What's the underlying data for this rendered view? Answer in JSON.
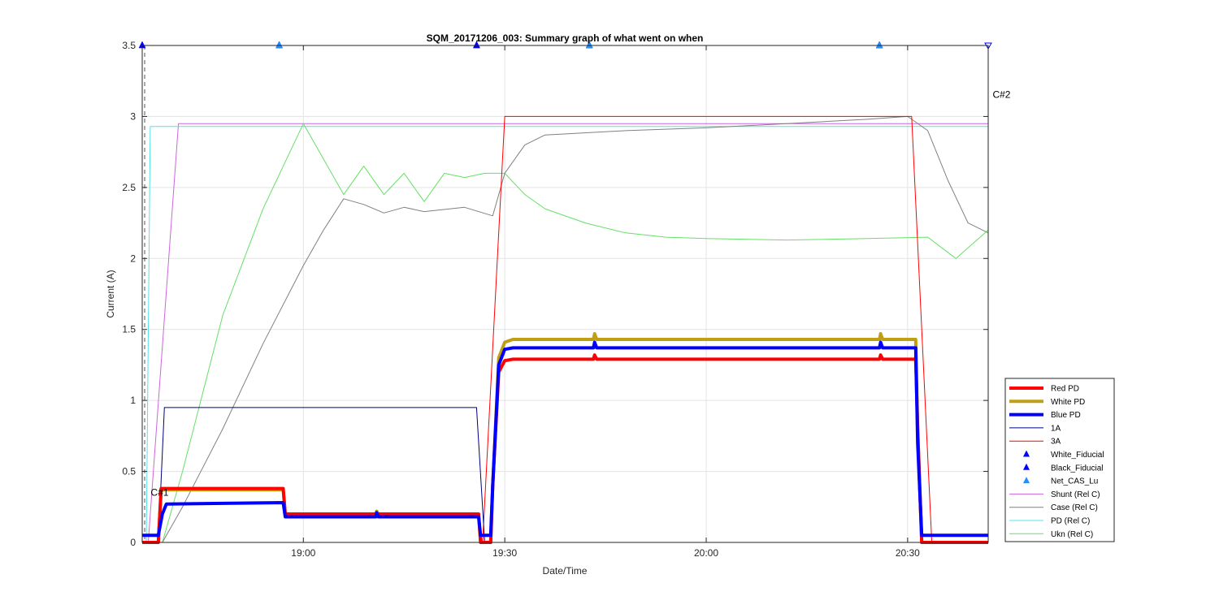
{
  "chart_data": {
    "type": "line",
    "title": "SQM_20171206_003: Summary graph of what went on when",
    "xlabel": "Date/Time",
    "ylabel": "Current (A)",
    "xlim": [
      18.6,
      20.7
    ],
    "ylim": [
      0,
      3.5
    ],
    "x_ticks": [
      {
        "value": 19.0,
        "label": "19:00"
      },
      {
        "value": 19.5,
        "label": "19:30"
      },
      {
        "value": 20.0,
        "label": "20:00"
      },
      {
        "value": 20.5,
        "label": "20:30"
      }
    ],
    "y_ticks": [
      {
        "value": 0,
        "label": "0"
      },
      {
        "value": 0.5,
        "label": "0.5"
      },
      {
        "value": 1,
        "label": "1"
      },
      {
        "value": 1.5,
        "label": "1.5"
      },
      {
        "value": 2,
        "label": "2"
      },
      {
        "value": 2.5,
        "label": "2.5"
      },
      {
        "value": 3,
        "label": "3"
      },
      {
        "value": 3.5,
        "label": "3.5"
      }
    ],
    "grid": true,
    "legend_position": "bottom-right outside",
    "annotations": [
      {
        "text": "C#1",
        "x": 18.615,
        "y": 0.33
      },
      {
        "text": "C#2",
        "x": 20.705,
        "y": 3.13
      }
    ],
    "series": [
      {
        "name": "Red PD",
        "color": "#ff0000",
        "width": 4,
        "x": [
          18.6,
          18.64,
          18.647,
          18.95,
          18.955,
          19.435,
          19.44,
          19.465,
          19.47,
          19.485,
          19.5,
          19.52,
          19.72,
          19.723,
          19.728,
          20.43,
          20.433,
          20.438,
          20.52,
          20.525,
          20.535,
          20.7
        ],
        "y": [
          0.0,
          0.0,
          0.38,
          0.38,
          0.2,
          0.2,
          0.0,
          0.0,
          0.4,
          1.2,
          1.28,
          1.29,
          1.29,
          1.32,
          1.29,
          1.29,
          1.32,
          1.29,
          1.29,
          0.8,
          0.0,
          0.0
        ]
      },
      {
        "name": "White PD",
        "color": "#bfa015",
        "width": 4,
        "x": [
          18.6,
          18.64,
          18.647,
          18.95,
          18.955,
          19.18,
          19.182,
          19.186,
          19.435,
          19.44,
          19.465,
          19.47,
          19.485,
          19.5,
          19.52,
          19.72,
          19.723,
          19.728,
          20.43,
          20.433,
          20.438,
          20.52,
          20.525,
          20.535,
          20.7
        ],
        "y": [
          0.0,
          0.0,
          0.37,
          0.37,
          0.2,
          0.2,
          0.22,
          0.2,
          0.2,
          0.0,
          0.0,
          0.4,
          1.3,
          1.41,
          1.43,
          1.43,
          1.47,
          1.43,
          1.43,
          1.47,
          1.43,
          1.43,
          0.8,
          0.0,
          0.0
        ]
      },
      {
        "name": "Blue PD",
        "color": "#0000ff",
        "width": 4,
        "x": [
          18.6,
          18.64,
          18.65,
          18.66,
          18.95,
          18.955,
          19.18,
          19.182,
          19.186,
          19.435,
          19.44,
          19.465,
          19.47,
          19.485,
          19.5,
          19.52,
          19.72,
          19.723,
          19.728,
          20.43,
          20.433,
          20.438,
          20.52,
          20.525,
          20.535,
          20.7
        ],
        "y": [
          0.05,
          0.05,
          0.2,
          0.27,
          0.28,
          0.18,
          0.18,
          0.21,
          0.18,
          0.18,
          0.05,
          0.05,
          0.4,
          1.25,
          1.36,
          1.37,
          1.37,
          1.41,
          1.37,
          1.37,
          1.41,
          1.37,
          1.37,
          0.7,
          0.05,
          0.05
        ]
      },
      {
        "name": "1A",
        "color": "#000080",
        "width": 1,
        "x": [
          18.6,
          18.64,
          18.655,
          19.43,
          19.45,
          20.7
        ],
        "y": [
          0.0,
          0.0,
          0.95,
          0.95,
          0.0,
          0.0
        ]
      },
      {
        "name": "3A",
        "color": "#ff0000",
        "width": 1,
        "x": [
          18.6,
          19.445,
          19.5,
          20.51,
          20.56,
          20.7
        ],
        "y": [
          0.0,
          0.0,
          3.0,
          3.0,
          0.0,
          0.0
        ]
      },
      {
        "name": "Shunt (Rel C)",
        "color": "#cc66dd",
        "width": 1,
        "x": [
          18.6,
          18.615,
          18.69,
          20.7
        ],
        "y": [
          0.0,
          0.0,
          2.95,
          2.95
        ]
      },
      {
        "name": "Case (Rel C)",
        "color": "#808080",
        "width": 1,
        "x": [
          18.6,
          18.65,
          18.7,
          18.8,
          18.9,
          19.0,
          19.05,
          19.1,
          19.15,
          19.2,
          19.25,
          19.3,
          19.4,
          19.47,
          19.5,
          19.55,
          19.6,
          19.8,
          20.0,
          20.2,
          20.4,
          20.5,
          20.55,
          20.6,
          20.65,
          20.7
        ],
        "y": [
          0.0,
          0.0,
          0.25,
          0.8,
          1.4,
          1.95,
          2.2,
          2.42,
          2.38,
          2.32,
          2.36,
          2.33,
          2.36,
          2.3,
          2.6,
          2.8,
          2.87,
          2.9,
          2.92,
          2.95,
          2.98,
          3.0,
          2.9,
          2.55,
          2.25,
          2.18
        ]
      },
      {
        "name": "PD (Rel C)",
        "color": "#55e0e8",
        "width": 1,
        "x": [
          18.6,
          18.61,
          18.62,
          20.7
        ],
        "y": [
          0.0,
          0.0,
          2.93,
          2.93
        ]
      },
      {
        "name": "Ukn (Rel C)",
        "color": "#66e066",
        "width": 1,
        "x": [
          18.6,
          18.65,
          18.7,
          18.8,
          18.9,
          19.0,
          19.1,
          19.15,
          19.2,
          19.25,
          19.3,
          19.35,
          19.4,
          19.45,
          19.5,
          19.55,
          19.6,
          19.7,
          19.8,
          19.9,
          20.0,
          20.2,
          20.4,
          20.55,
          20.62,
          20.68,
          20.7
        ],
        "y": [
          0.0,
          0.0,
          0.5,
          1.6,
          2.35,
          2.95,
          2.45,
          2.65,
          2.45,
          2.6,
          2.4,
          2.6,
          2.57,
          2.6,
          2.6,
          2.45,
          2.35,
          2.25,
          2.18,
          2.15,
          2.14,
          2.13,
          2.14,
          2.15,
          2.0,
          2.15,
          2.2
        ]
      }
    ],
    "markers": [
      {
        "name": "White_Fiducial",
        "color": "#0000ff",
        "symbol": "triangle-up",
        "x": [
          18.6,
          18.94,
          19.43,
          19.71,
          20.43
        ],
        "y": [
          3.5,
          3.5,
          3.5,
          3.5,
          3.5
        ]
      },
      {
        "name": "Black_Fiducial",
        "color": "#0000ff",
        "symbol": "triangle-up",
        "x": [
          18.94,
          19.43,
          19.71,
          20.43
        ],
        "y": [
          3.5,
          3.5,
          3.5,
          3.5
        ]
      },
      {
        "name": "Net_CAS_Lu",
        "color": "#1e90ff",
        "symbol": "triangle-up",
        "x": [
          18.94,
          19.71,
          20.43
        ],
        "y": [
          3.5,
          3.5,
          3.5
        ]
      },
      {
        "name": "",
        "color": "#0000ff",
        "symbol": "triangle-down-open",
        "x": [
          20.7
        ],
        "y": [
          3.5
        ]
      }
    ]
  }
}
